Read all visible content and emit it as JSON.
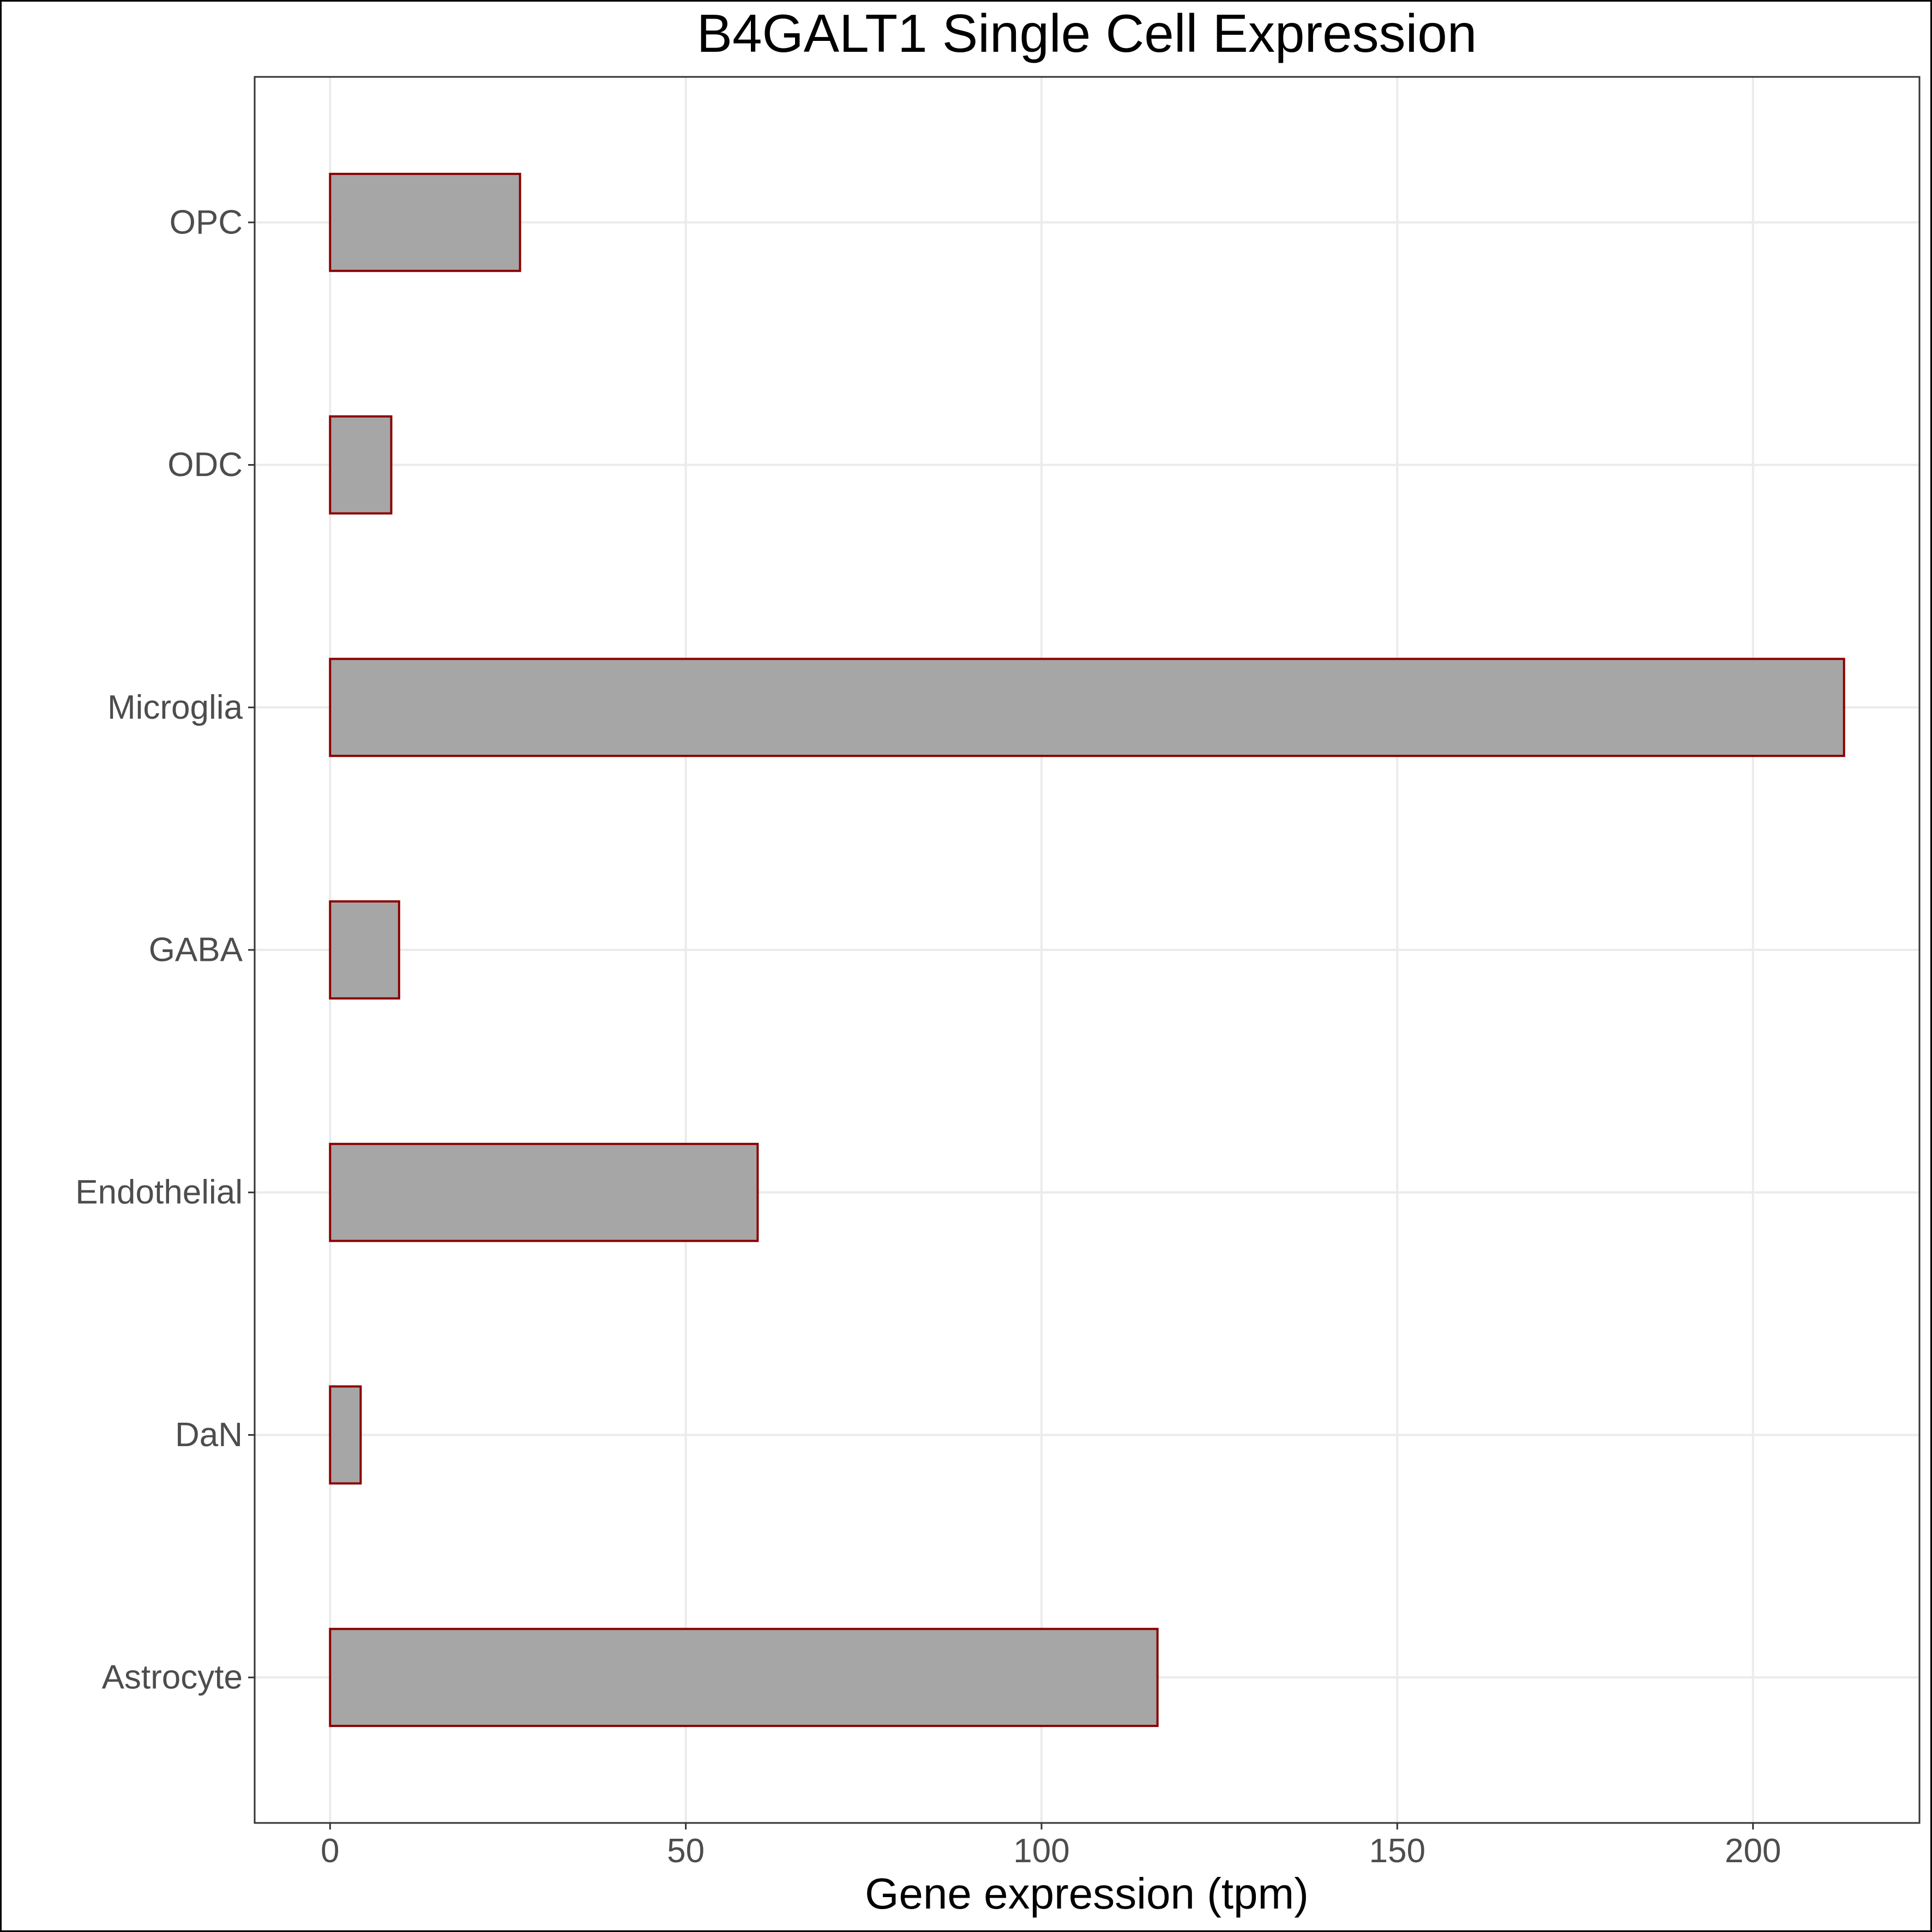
{
  "chart_data": {
    "type": "bar",
    "orientation": "horizontal",
    "title": "B4GALT1 Single Cell Expression",
    "xlabel": "Gene expression (tpm)",
    "ylabel": "",
    "categories": [
      "Astrocyte",
      "DaN",
      "Endothelial",
      "GABA",
      "Microglia",
      "ODC",
      "OPC"
    ],
    "values": [
      116.3,
      4.3,
      60.1,
      9.7,
      212.8,
      8.6,
      26.7
    ],
    "xlim": [
      -10.6,
      223.4
    ],
    "xticks": [
      0,
      50,
      100,
      150,
      200
    ],
    "grid": true,
    "legend": "none",
    "colors": {
      "bar_fill": "#a6a6a6",
      "bar_stroke": "#8b0000",
      "grid": "#ebebeb",
      "axis_text": "#4d4d4d",
      "panel_border": "#333333"
    }
  }
}
